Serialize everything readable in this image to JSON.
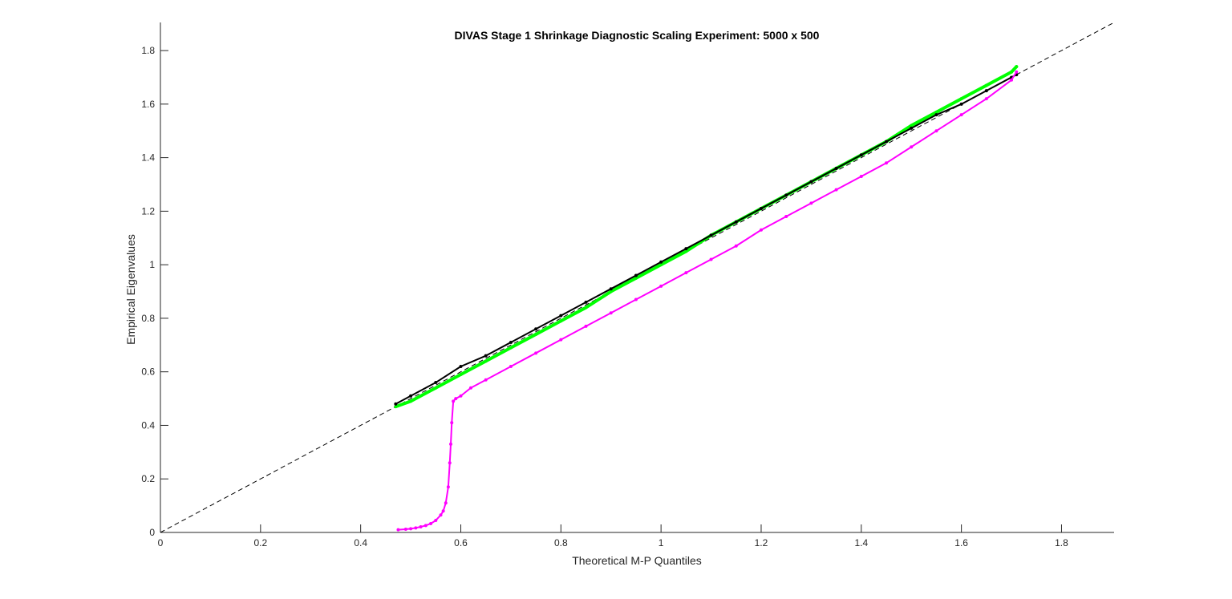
{
  "chart_data": {
    "type": "scatter",
    "title": "DIVAS Stage 1 Shrinkage Diagnostic Scaling Experiment: 5000 x 500",
    "xlabel": "Theoretical M-P Quantiles",
    "ylabel": "Empirical Eigenvalues",
    "xlim": [
      0,
      1.905
    ],
    "ylim": [
      0,
      1.905
    ],
    "xticks": [
      0,
      0.2,
      0.4,
      0.6,
      0.8,
      1,
      1.2,
      1.4,
      1.6,
      1.8
    ],
    "yticks": [
      0,
      0.2,
      0.4,
      0.6,
      0.8,
      1,
      1.2,
      1.4,
      1.6,
      1.8
    ],
    "xtick_labels": [
      "0",
      "0.2",
      "0.4",
      "0.6",
      "0.8",
      "1",
      "1.2",
      "1.4",
      "1.6",
      "1.8"
    ],
    "ytick_labels": [
      "0",
      "0.2",
      "0.4",
      "0.6",
      "0.8",
      "1",
      "1.2",
      "1.4",
      "1.6",
      "1.8"
    ],
    "grid": false,
    "reference_line": {
      "style": "dashed",
      "color": "#000000",
      "from": [
        0,
        0
      ],
      "to": [
        1.905,
        1.905
      ]
    },
    "series": [
      {
        "color": "#00ff00",
        "marker": "dot",
        "line": true,
        "x": [
          0.47,
          0.5,
          0.55,
          0.6,
          0.65,
          0.7,
          0.75,
          0.8,
          0.85,
          0.9,
          0.95,
          1.0,
          1.05,
          1.1,
          1.15,
          1.2,
          1.25,
          1.3,
          1.35,
          1.4,
          1.45,
          1.5,
          1.55,
          1.6,
          1.65,
          1.7,
          1.71
        ],
        "y": [
          0.47,
          0.49,
          0.54,
          0.59,
          0.64,
          0.69,
          0.74,
          0.79,
          0.84,
          0.9,
          0.95,
          1.0,
          1.05,
          1.11,
          1.16,
          1.21,
          1.26,
          1.31,
          1.36,
          1.41,
          1.46,
          1.52,
          1.57,
          1.62,
          1.67,
          1.72,
          1.74
        ]
      },
      {
        "color": "#000000",
        "marker": "dot",
        "line": true,
        "x": [
          0.47,
          0.5,
          0.55,
          0.6,
          0.65,
          0.7,
          0.75,
          0.8,
          0.85,
          0.9,
          0.95,
          1.0,
          1.05,
          1.1,
          1.15,
          1.2,
          1.25,
          1.3,
          1.35,
          1.4,
          1.45,
          1.5,
          1.55,
          1.6,
          1.65,
          1.7,
          1.71
        ],
        "y": [
          0.48,
          0.51,
          0.56,
          0.62,
          0.66,
          0.71,
          0.76,
          0.81,
          0.86,
          0.91,
          0.96,
          1.01,
          1.06,
          1.11,
          1.16,
          1.21,
          1.26,
          1.31,
          1.36,
          1.41,
          1.46,
          1.51,
          1.56,
          1.6,
          1.65,
          1.7,
          1.71
        ]
      },
      {
        "color": "#ff00ff",
        "marker": "dot",
        "line": true,
        "x": [
          0.475,
          0.49,
          0.5,
          0.51,
          0.52,
          0.53,
          0.54,
          0.55,
          0.56,
          0.565,
          0.57,
          0.575,
          0.578,
          0.58,
          0.582,
          0.585,
          0.59,
          0.6,
          0.62,
          0.65,
          0.7,
          0.75,
          0.8,
          0.85,
          0.9,
          0.95,
          1.0,
          1.05,
          1.1,
          1.15,
          1.2,
          1.25,
          1.3,
          1.35,
          1.4,
          1.45,
          1.5,
          1.55,
          1.6,
          1.65,
          1.7,
          1.71
        ],
        "y": [
          0.01,
          0.012,
          0.014,
          0.017,
          0.021,
          0.026,
          0.033,
          0.045,
          0.065,
          0.08,
          0.11,
          0.17,
          0.26,
          0.33,
          0.41,
          0.49,
          0.5,
          0.51,
          0.54,
          0.57,
          0.62,
          0.67,
          0.72,
          0.77,
          0.82,
          0.87,
          0.92,
          0.97,
          1.02,
          1.07,
          1.13,
          1.18,
          1.23,
          1.28,
          1.33,
          1.38,
          1.44,
          1.5,
          1.56,
          1.62,
          1.69,
          1.72
        ]
      }
    ]
  }
}
